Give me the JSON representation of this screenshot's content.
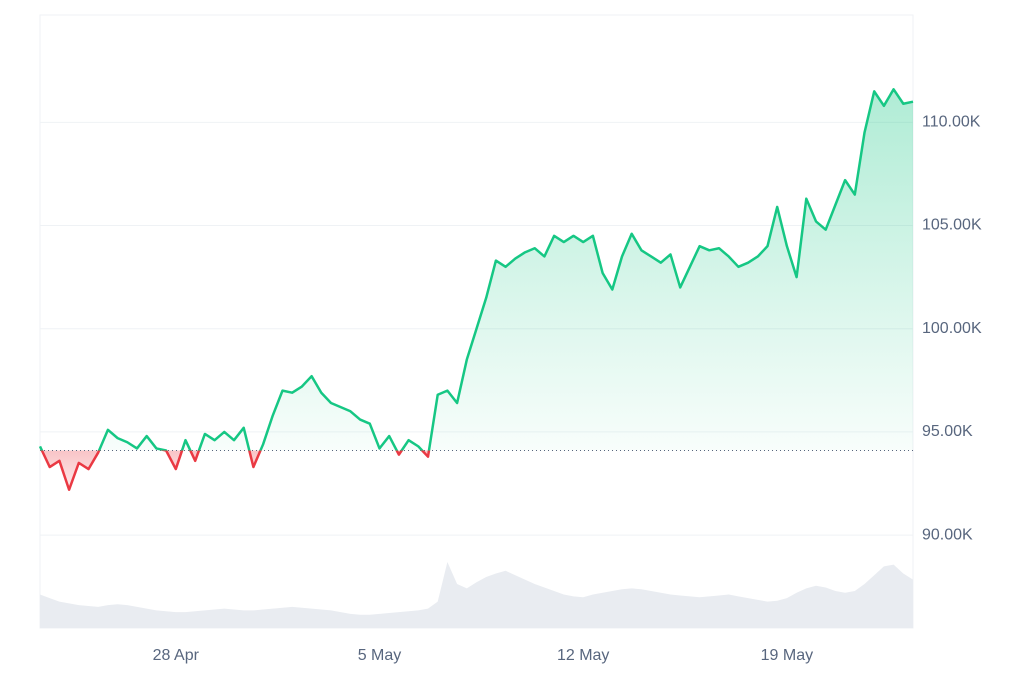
{
  "chart_data": {
    "type": "line",
    "categories": [
      null,
      null,
      null,
      null,
      null,
      null,
      null,
      null,
      null,
      null,
      null,
      null,
      null,
      null,
      "28 Apr",
      null,
      null,
      null,
      null,
      null,
      null,
      null,
      null,
      null,
      null,
      null,
      null,
      null,
      null,
      null,
      null,
      null,
      null,
      null,
      null,
      "5 May",
      null,
      null,
      null,
      null,
      null,
      null,
      null,
      null,
      null,
      null,
      null,
      null,
      null,
      null,
      null,
      null,
      null,
      null,
      null,
      null,
      "12 May",
      null,
      null,
      null,
      null,
      null,
      null,
      null,
      null,
      null,
      null,
      null,
      null,
      null,
      null,
      null,
      null,
      null,
      null,
      null,
      null,
      "19 May",
      null,
      null,
      null,
      null,
      null,
      null,
      null,
      null,
      null,
      null,
      null,
      null,
      null
    ],
    "values": [
      94300,
      93300,
      93600,
      92200,
      93500,
      93200,
      94000,
      95100,
      94700,
      94500,
      94200,
      94800,
      94200,
      94100,
      93200,
      94600,
      93600,
      94900,
      94600,
      95000,
      94600,
      95200,
      93300,
      94400,
      95800,
      97000,
      96900,
      97200,
      97700,
      96900,
      96400,
      96200,
      96000,
      95600,
      95400,
      94200,
      94800,
      93900,
      94600,
      94300,
      93800,
      96800,
      97000,
      96400,
      98500,
      100000,
      101500,
      103300,
      103000,
      103400,
      103700,
      103900,
      103500,
      104500,
      104200,
      104500,
      104200,
      104500,
      102700,
      101900,
      103500,
      104600,
      103800,
      103500,
      103200,
      103600,
      102000,
      103000,
      104000,
      103800,
      103900,
      103500,
      103000,
      103200,
      103500,
      104000,
      105900,
      104000,
      102500,
      106300,
      105200,
      104800,
      106000,
      107200,
      106500,
      109500,
      111500,
      110800,
      111600,
      110900,
      111000
    ],
    "baseline": 94100,
    "up_color": "#16c784",
    "down_color": "#ea3943",
    "volume": [
      38,
      34,
      30,
      28,
      26,
      25,
      24,
      26,
      27,
      26,
      24,
      22,
      20,
      19,
      18,
      18,
      19,
      20,
      21,
      22,
      21,
      20,
      20,
      21,
      22,
      23,
      24,
      23,
      22,
      21,
      20,
      18,
      16,
      15,
      15,
      16,
      17,
      18,
      19,
      20,
      22,
      30,
      75,
      50,
      45,
      52,
      58,
      62,
      65,
      60,
      55,
      50,
      46,
      42,
      38,
      36,
      35,
      38,
      40,
      42,
      44,
      45,
      44,
      42,
      40,
      38,
      37,
      36,
      35,
      36,
      37,
      38,
      36,
      34,
      32,
      30,
      31,
      34,
      40,
      45,
      48,
      46,
      42,
      40,
      42,
      50,
      60,
      70,
      72,
      62,
      55
    ],
    "volume_color": "#e9ecf1",
    "ylim": [
      85500,
      115200
    ],
    "yticks": [
      {
        "value": 90000,
        "label": "90.00K"
      },
      {
        "value": 95000,
        "label": "95.00K"
      },
      {
        "value": 100000,
        "label": "100.00K"
      },
      {
        "value": 105000,
        "label": "105.00K"
      },
      {
        "value": 110000,
        "label": "110.00K"
      }
    ],
    "grid": true
  }
}
